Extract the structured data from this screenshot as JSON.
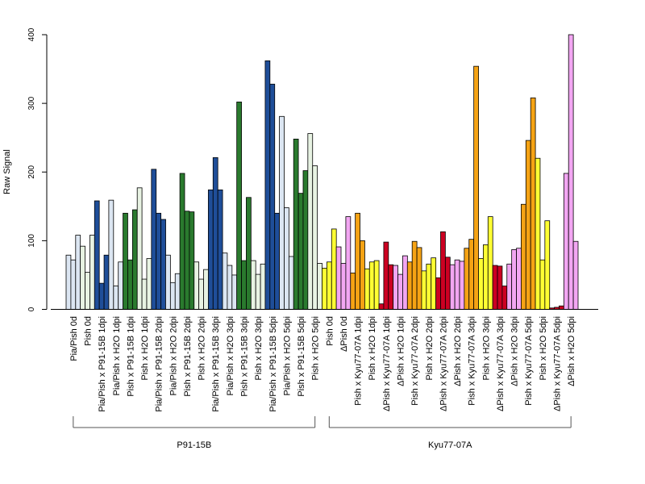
{
  "chart_data": {
    "type": "bar",
    "title": "",
    "xlabel": "",
    "ylabel": "Raw Signal",
    "ylim": [
      0,
      400
    ],
    "yticks": [
      0,
      100,
      200,
      300,
      400
    ],
    "grid": false,
    "legend": "none",
    "colors": {
      "P91-15B": {
        "light": "#dce6f2",
        "dark": "#1f4e99"
      },
      "P91-15B-H2O": {
        "light": "#e8f3e3",
        "dark": "#2a7a2e"
      },
      "Kyu77-07A-pish": {
        "mock": "#ffff33",
        "inf": "#f5a314"
      },
      "Kyu77-07A-dpish": {
        "mock": "#f2a6f2",
        "inf": "#cc0022"
      }
    },
    "categories": [
      {
        "label": "Pia/Pish 0d",
        "group": "P91-15B",
        "palette": "P91-15B",
        "shade": "light",
        "values": [
          79,
          72,
          108
        ]
      },
      {
        "label": "Pish 0d",
        "group": "P91-15B",
        "palette": "P91-15B-H2O",
        "shade": "light",
        "values": [
          92,
          54,
          108
        ]
      },
      {
        "label": "Pia/Pish x P91-15B 1dpi",
        "group": "P91-15B",
        "palette": "P91-15B",
        "shade": "dark",
        "values": [
          158,
          38,
          79
        ]
      },
      {
        "label": "Pia/Pish x H2O 1dpi",
        "group": "P91-15B",
        "palette": "P91-15B",
        "shade": "light",
        "values": [
          159,
          34,
          69
        ]
      },
      {
        "label": "Pish x P91-15B 1dpi",
        "group": "P91-15B",
        "palette": "P91-15B-H2O",
        "shade": "dark",
        "values": [
          140,
          72,
          145
        ]
      },
      {
        "label": "Pish x H2O 1dpi",
        "group": "P91-15B",
        "palette": "P91-15B-H2O",
        "shade": "light",
        "values": [
          177,
          44,
          74
        ]
      },
      {
        "label": "Pia/Pish x P91-15B 2dpi",
        "group": "P91-15B",
        "palette": "P91-15B",
        "shade": "dark",
        "values": [
          204,
          140,
          131
        ]
      },
      {
        "label": "Pia/Pish x H2O 2dpi",
        "group": "P91-15B",
        "palette": "P91-15B",
        "shade": "light",
        "values": [
          79,
          39,
          52
        ]
      },
      {
        "label": "Pish x P91-15B 2dpi",
        "group": "P91-15B",
        "palette": "P91-15B-H2O",
        "shade": "dark",
        "values": [
          198,
          143,
          142
        ]
      },
      {
        "label": "Pish x H2O 2dpi",
        "group": "P91-15B",
        "palette": "P91-15B-H2O",
        "shade": "light",
        "values": [
          69,
          44,
          58
        ]
      },
      {
        "label": "Pia/Pish x P91-15B 3dpi",
        "group": "P91-15B",
        "palette": "P91-15B",
        "shade": "dark",
        "values": [
          174,
          221,
          174
        ]
      },
      {
        "label": "Pia/Pish x H2O 3dpi",
        "group": "P91-15B",
        "palette": "P91-15B",
        "shade": "light",
        "values": [
          82,
          64,
          50
        ]
      },
      {
        "label": "Pish x P91-15B 3dpi",
        "group": "P91-15B",
        "palette": "P91-15B-H2O",
        "shade": "dark",
        "values": [
          302,
          71,
          163
        ]
      },
      {
        "label": "Pish x H2O 3dpi",
        "group": "P91-15B",
        "palette": "P91-15B-H2O",
        "shade": "light",
        "values": [
          71,
          51,
          66
        ]
      },
      {
        "label": "Pia/Pish x P91-15B 5dpi",
        "group": "P91-15B",
        "palette": "P91-15B",
        "shade": "dark",
        "values": [
          362,
          328,
          140
        ]
      },
      {
        "label": "Pia/Pish x H2O 5dpi",
        "group": "P91-15B",
        "palette": "P91-15B",
        "shade": "light",
        "values": [
          281,
          148,
          77
        ]
      },
      {
        "label": "Pish x P91-15B 5dpi",
        "group": "P91-15B",
        "palette": "P91-15B-H2O",
        "shade": "dark",
        "values": [
          248,
          169,
          202
        ]
      },
      {
        "label": "Pish x H2O 5dpi",
        "group": "P91-15B",
        "palette": "P91-15B-H2O",
        "shade": "light",
        "values": [
          256,
          209,
          67
        ]
      },
      {
        "label": "Pish 0d",
        "group": "Kyu77-07A",
        "palette": "Kyu77-07A-pish",
        "shade": "mock",
        "values": [
          60,
          69,
          117
        ]
      },
      {
        "label": "ΔPish 0d",
        "group": "Kyu77-07A",
        "palette": "Kyu77-07A-dpish",
        "shade": "mock",
        "values": [
          91,
          67,
          135
        ]
      },
      {
        "label": "Pish x Kyu77-07A 1dpi",
        "group": "Kyu77-07A",
        "palette": "Kyu77-07A-pish",
        "shade": "inf",
        "values": [
          53,
          140,
          100
        ]
      },
      {
        "label": "Pish x H2O 1dpi",
        "group": "Kyu77-07A",
        "palette": "Kyu77-07A-pish",
        "shade": "mock",
        "values": [
          59,
          69,
          71
        ]
      },
      {
        "label": "ΔPish x Kyu77-07A 1dpi",
        "group": "Kyu77-07A",
        "palette": "Kyu77-07A-dpish",
        "shade": "inf",
        "values": [
          8,
          98,
          65
        ]
      },
      {
        "label": "ΔPish x H2O 1dpi",
        "group": "Kyu77-07A",
        "palette": "Kyu77-07A-dpish",
        "shade": "mock",
        "values": [
          64,
          51,
          78
        ]
      },
      {
        "label": "Pish x Kyu77-07A 2dpi",
        "group": "Kyu77-07A",
        "palette": "Kyu77-07A-pish",
        "shade": "inf",
        "values": [
          69,
          99,
          90
        ]
      },
      {
        "label": "Pish x H2O 2dpi",
        "group": "Kyu77-07A",
        "palette": "Kyu77-07A-pish",
        "shade": "mock",
        "values": [
          56,
          66,
          75
        ]
      },
      {
        "label": "ΔPish x Kyu77-07A 2dpi",
        "group": "Kyu77-07A",
        "palette": "Kyu77-07A-dpish",
        "shade": "inf",
        "values": [
          46,
          113,
          76
        ]
      },
      {
        "label": "ΔPish x H2O 2dpi",
        "group": "Kyu77-07A",
        "palette": "Kyu77-07A-dpish",
        "shade": "mock",
        "values": [
          65,
          72,
          70
        ]
      },
      {
        "label": "Pish x Kyu77-07A 3dpi",
        "group": "Kyu77-07A",
        "palette": "Kyu77-07A-pish",
        "shade": "inf",
        "values": [
          89,
          102,
          354
        ]
      },
      {
        "label": "Pish x H2O 3dpi",
        "group": "Kyu77-07A",
        "palette": "Kyu77-07A-pish",
        "shade": "mock",
        "values": [
          74,
          94,
          135
        ]
      },
      {
        "label": "ΔPish x Kyu77-07A 3dpi",
        "group": "Kyu77-07A",
        "palette": "Kyu77-07A-dpish",
        "shade": "inf",
        "values": [
          64,
          63,
          34
        ]
      },
      {
        "label": "ΔPish x H2O 3dpi",
        "group": "Kyu77-07A",
        "palette": "Kyu77-07A-dpish",
        "shade": "mock",
        "values": [
          66,
          87,
          89
        ]
      },
      {
        "label": "Pish x Kyu77-07A 5dpi",
        "group": "Kyu77-07A",
        "palette": "Kyu77-07A-pish",
        "shade": "inf",
        "values": [
          153,
          246,
          308
        ]
      },
      {
        "label": "Pish x H2O 5dpi",
        "group": "Kyu77-07A",
        "palette": "Kyu77-07A-pish",
        "shade": "mock",
        "values": [
          220,
          72,
          129
        ]
      },
      {
        "label": "ΔPish x Kyu77-07A 5dpi",
        "group": "Kyu77-07A",
        "palette": "Kyu77-07A-dpish",
        "shade": "inf",
        "values": [
          2,
          3,
          5
        ]
      },
      {
        "label": "ΔPish x H2O 5dpi",
        "group": "Kyu77-07A",
        "palette": "Kyu77-07A-dpish",
        "shade": "mock",
        "values": [
          198,
          400,
          99
        ]
      }
    ],
    "groups": [
      {
        "name": "P91-15B",
        "first": 0,
        "last": 17
      },
      {
        "name": "Kyu77-07A",
        "first": 18,
        "last": 35
      }
    ]
  }
}
